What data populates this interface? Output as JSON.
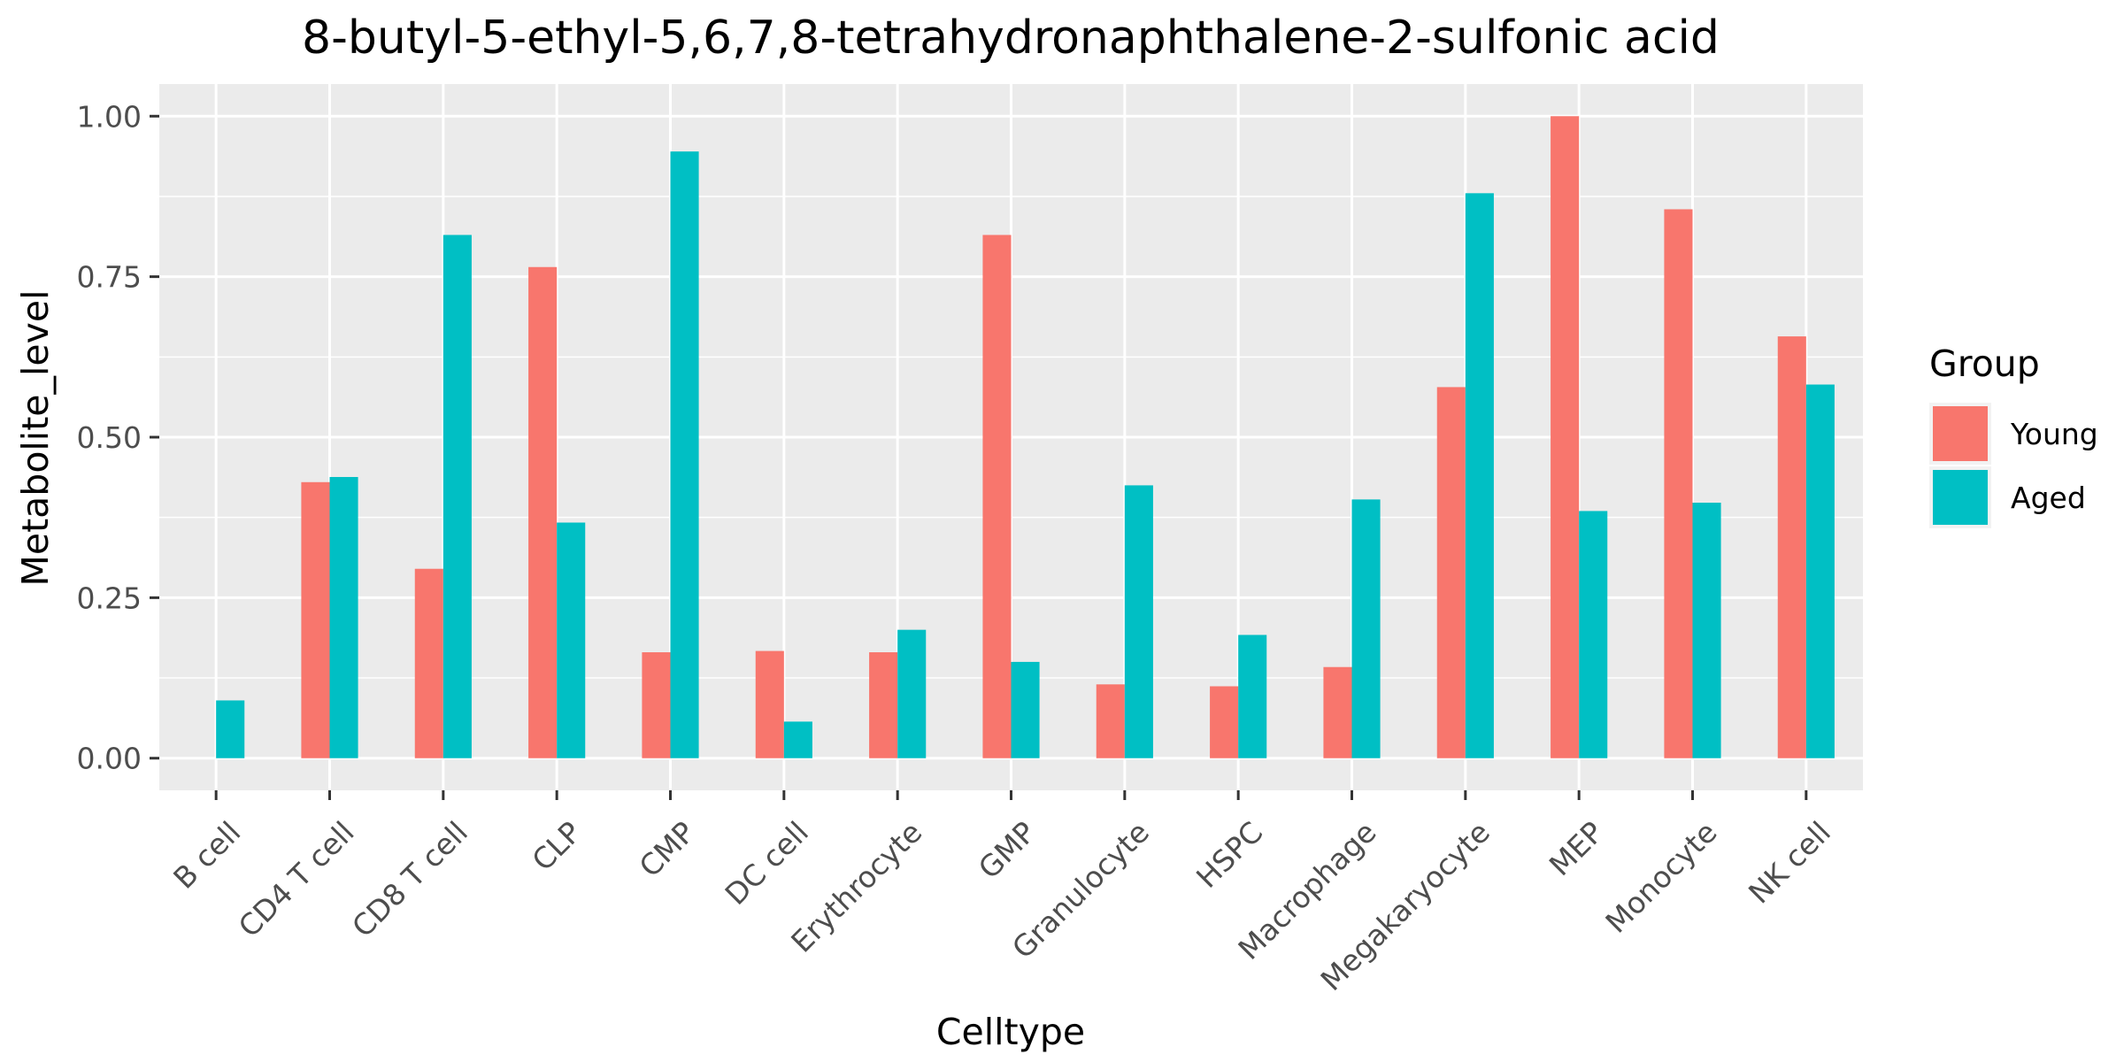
{
  "chart_data": {
    "type": "bar",
    "title": "8-butyl-5-ethyl-5,6,7,8-tetrahydronaphthalene-2-sulfonic acid",
    "xlabel": "Celltype",
    "ylabel": "Metabolite_level",
    "ylim": [
      -0.05,
      1.05
    ],
    "yticks": [
      0.0,
      0.25,
      0.5,
      0.75,
      1.0
    ],
    "ytick_labels": [
      "0.00",
      "0.25",
      "0.50",
      "0.75",
      "1.00"
    ],
    "grid": true,
    "legend": {
      "title": "Group",
      "position": "right"
    },
    "categories": [
      "B cell",
      "CD4 T cell",
      "CD8 T cell",
      "CLP",
      "CMP",
      "DC cell",
      "Erythrocyte",
      "GMP",
      "Granulocyte",
      "HSPC",
      "Macrophage",
      "Megakaryocyte",
      "MEP",
      "Monocyte",
      "NK cell"
    ],
    "series": [
      {
        "name": "Young",
        "color": "#F8766D",
        "values": [
          0.0,
          0.43,
          0.295,
          0.765,
          0.165,
          0.167,
          0.165,
          0.815,
          0.115,
          0.112,
          0.142,
          0.578,
          1.0,
          0.855,
          0.657
        ]
      },
      {
        "name": "Aged",
        "color": "#00BFC4",
        "values": [
          0.09,
          0.438,
          0.815,
          0.367,
          0.945,
          0.057,
          0.2,
          0.15,
          0.425,
          0.192,
          0.403,
          0.88,
          0.385,
          0.398,
          0.582
        ]
      }
    ],
    "colors": {
      "panel": "#EBEBEB",
      "grid": "#FFFFFF",
      "tick": "#333333"
    }
  }
}
